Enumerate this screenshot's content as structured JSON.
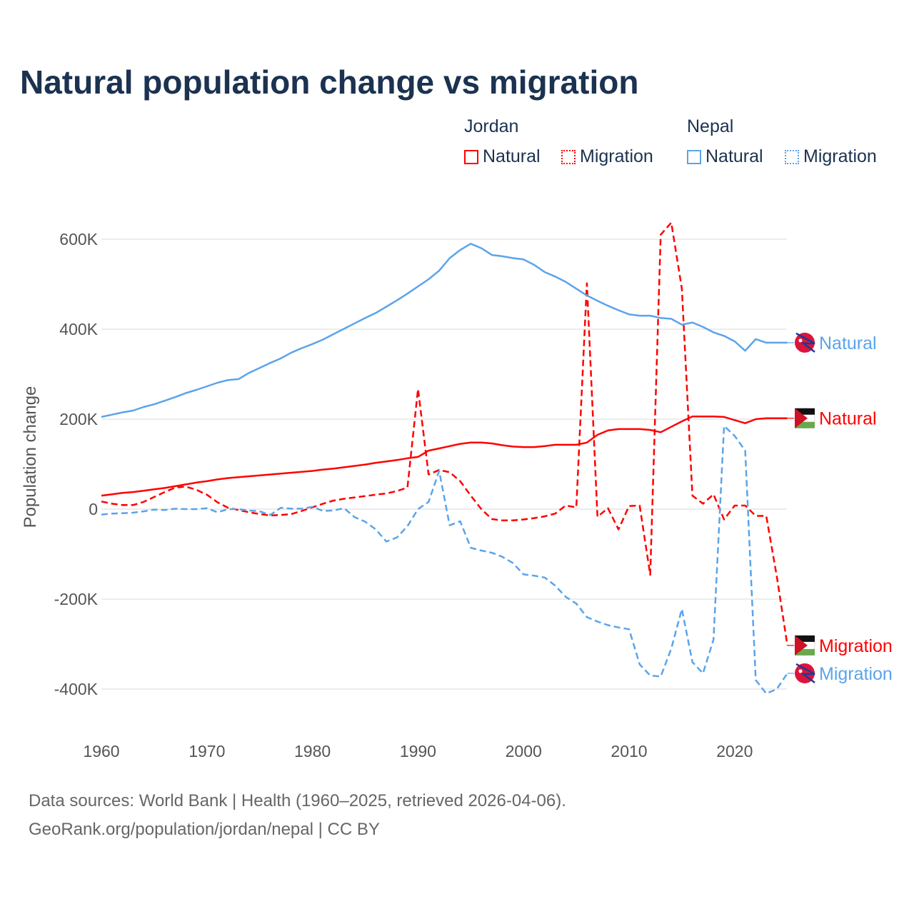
{
  "title": "Natural population change vs migration",
  "legend": {
    "groups": [
      {
        "name": "Jordan",
        "items": [
          "Natural",
          "Migration"
        ]
      },
      {
        "name": "Nepal",
        "items": [
          "Natural",
          "Migration"
        ]
      }
    ]
  },
  "footer": {
    "line1": "Data sources: World Bank | Health (1960–2025, retrieved 2026-04-06).",
    "line2": "GeoRank.org/population/jordan/nepal | CC BY"
  },
  "colors": {
    "jordan": "#ff0000",
    "nepal": "#5ba4ea",
    "title": "#1b3250"
  },
  "chart_data": {
    "type": "line",
    "title": "Natural population change vs migration",
    "xlabel": "",
    "ylabel": "Population change",
    "xlim": [
      1960,
      2025
    ],
    "ylim": [
      -500000,
      650000
    ],
    "x_ticks": [
      1960,
      1970,
      1980,
      1990,
      2000,
      2010,
      2020
    ],
    "x_tick_labels": [
      "1960",
      "1970",
      "1980",
      "1990",
      "2000",
      "2010",
      "2020"
    ],
    "y_ticks": [
      600000,
      400000,
      200000,
      0,
      -200000,
      -400000
    ],
    "y_tick_labels": [
      "600K",
      "400K",
      "200K",
      "0",
      "-200K",
      "-400K"
    ],
    "grid": true,
    "legend_position": "top-right",
    "x_start": 1960,
    "series": [
      {
        "name": "Jordan Natural",
        "label": "Natural",
        "country": "jordan",
        "dashed": false,
        "values_k": [
          30,
          33,
          36,
          38,
          41,
          44,
          47,
          51,
          55,
          59,
          62,
          66,
          69,
          71,
          73,
          75,
          77,
          79,
          81,
          83,
          85,
          88,
          90,
          93,
          96,
          99,
          103,
          106,
          109,
          113,
          116,
          130,
          135,
          140,
          145,
          148,
          148,
          146,
          142,
          139,
          138,
          138,
          140,
          143,
          143,
          143,
          148,
          165,
          175,
          178,
          178,
          178,
          176,
          171,
          183,
          195,
          206,
          206,
          206,
          205,
          198,
          191,
          200,
          202,
          202,
          202
        ]
      },
      {
        "name": "Jordan Migration",
        "label": "Migration",
        "country": "jordan",
        "dashed": true,
        "values_k": [
          17,
          12,
          9,
          9,
          16,
          27,
          38,
          48,
          50,
          43,
          32,
          15,
          3,
          -2,
          -7,
          -11,
          -14,
          -13,
          -11,
          -4,
          4,
          12,
          19,
          23,
          26,
          29,
          32,
          35,
          40,
          48,
          267,
          77,
          87,
          82,
          62,
          30,
          0,
          -22,
          -25,
          -25,
          -23,
          -20,
          -16,
          -10,
          8,
          4,
          502,
          -17,
          2,
          -45,
          7,
          8,
          -146,
          610,
          637,
          490,
          30,
          12,
          33,
          -23,
          8,
          8,
          -15,
          -15,
          -150,
          -303
        ]
      },
      {
        "name": "Nepal Natural",
        "label": "Natural",
        "country": "nepal",
        "dashed": false,
        "values_k": [
          205,
          210,
          215,
          219,
          227,
          233,
          241,
          249,
          258,
          265,
          273,
          281,
          287,
          289,
          303,
          314,
          325,
          335,
          348,
          358,
          367,
          377,
          389,
          401,
          413,
          425,
          436,
          450,
          464,
          479,
          495,
          511,
          530,
          558,
          576,
          590,
          580,
          565,
          562,
          558,
          555,
          543,
          527,
          517,
          505,
          490,
          475,
          463,
          452,
          442,
          433,
          430,
          430,
          425,
          423,
          410,
          415,
          405,
          393,
          385,
          373,
          352,
          378,
          370,
          370,
          370
        ]
      },
      {
        "name": "Nepal Migration",
        "label": "Migration",
        "country": "nepal",
        "dashed": true,
        "values_k": [
          -12,
          -10,
          -9,
          -8,
          -5,
          -1,
          -2,
          1,
          0,
          0,
          2,
          -7,
          0,
          0,
          -3,
          -5,
          -13,
          3,
          1,
          1,
          5,
          -4,
          -3,
          2,
          -18,
          -28,
          -45,
          -72,
          -63,
          -38,
          0,
          16,
          85,
          -36,
          -27,
          -86,
          -92,
          -97,
          -106,
          -120,
          -145,
          -148,
          -152,
          -170,
          -195,
          -210,
          -240,
          -250,
          -258,
          -263,
          -267,
          -345,
          -370,
          -372,
          -310,
          -222,
          -340,
          -365,
          -290,
          185,
          163,
          130,
          -380,
          -410,
          -400,
          -365
        ]
      }
    ]
  }
}
